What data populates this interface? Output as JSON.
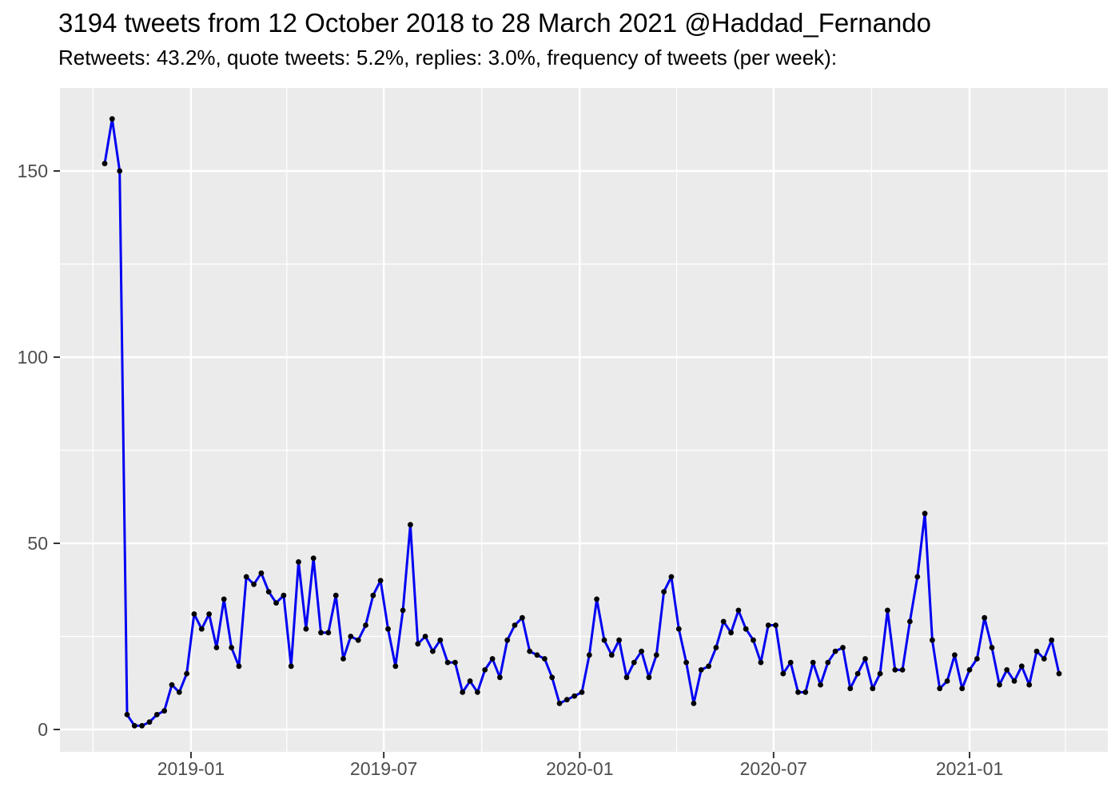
{
  "header": {
    "title": "3194 tweets from 12 October 2018 to 28 March 2021 @Haddad_Fernando",
    "subtitle": "Retweets: 43.2%, quote tweets: 5.2%, replies: 3.0%, frequency of tweets (per week):"
  },
  "chart_data": {
    "type": "line",
    "title": "3194 tweets from 12 October 2018 to 28 March 2021 @Haddad_Fernando",
    "subtitle": "Retweets: 43.2%, quote tweets: 5.2%, replies: 3.0%, frequency of tweets (per week):",
    "xlabel": "",
    "ylabel": "",
    "series_name": "tweets per week",
    "start_date": "2018-10-14",
    "interval": "week",
    "values": [
      152,
      164,
      150,
      4,
      1,
      1,
      2,
      4,
      5,
      12,
      10,
      15,
      31,
      27,
      31,
      22,
      35,
      22,
      17,
      41,
      39,
      42,
      37,
      34,
      36,
      17,
      45,
      27,
      46,
      26,
      26,
      36,
      19,
      25,
      24,
      28,
      36,
      40,
      27,
      17,
      32,
      55,
      23,
      25,
      21,
      24,
      18,
      18,
      10,
      13,
      10,
      16,
      19,
      14,
      24,
      28,
      30,
      21,
      20,
      19,
      14,
      7,
      8,
      9,
      10,
      20,
      35,
      24,
      20,
      24,
      14,
      18,
      21,
      14,
      20,
      37,
      41,
      27,
      18,
      7,
      16,
      17,
      22,
      29,
      26,
      32,
      27,
      24,
      18,
      28,
      28,
      15,
      18,
      10,
      10,
      18,
      12,
      18,
      21,
      22,
      11,
      15,
      19,
      11,
      15,
      32,
      16,
      16,
      29,
      41,
      58,
      24,
      11,
      13,
      20,
      11,
      16,
      19,
      30,
      22,
      12,
      16,
      13,
      17,
      12,
      21,
      19,
      24,
      15
    ],
    "x_axis": {
      "tick_labels": [
        "2019-01",
        "2019-07",
        "2020-01",
        "2020-07",
        "2021-01"
      ],
      "tick_weeks": [
        11.571,
        37.429,
        63.714,
        89.714,
        116.0
      ],
      "minor_weeks": [
        -1.571,
        24.429,
        50.571,
        76.714,
        102.857,
        128.857
      ]
    },
    "y_axis": {
      "tick_values": [
        0,
        50,
        100,
        150
      ],
      "minor_values": [
        25,
        75,
        125
      ],
      "range": [
        0,
        164
      ]
    },
    "grid": true,
    "legend": false,
    "colors": {
      "line": "#0101F2",
      "point": "#000000",
      "panel_bg": "#EBEBEB",
      "grid": "#FFFFFF",
      "tick_mark": "#333333",
      "tick_text": "#4D4D4D",
      "title_text": "#000000"
    }
  }
}
